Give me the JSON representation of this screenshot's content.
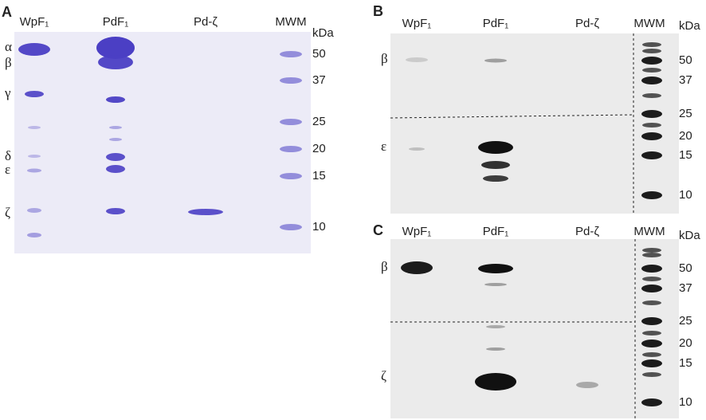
{
  "panels": [
    {
      "label": "A",
      "lanes": [
        "WpF₁",
        "PdF₁",
        "Pd-ζ",
        "MWM"
      ],
      "unit": "kDa",
      "markers": [
        50,
        37,
        25,
        20,
        15,
        10
      ],
      "subunits": [
        "α",
        "β",
        "γ",
        "δ",
        "ε",
        "ζ"
      ]
    },
    {
      "label": "B",
      "lanes": [
        "WpF₁",
        "PdF₁",
        "Pd-ζ",
        "MWM"
      ],
      "unit": "kDa",
      "markers": [
        50,
        37,
        25,
        20,
        15,
        10
      ],
      "subunits": [
        "β",
        "ε"
      ]
    },
    {
      "label": "C",
      "lanes": [
        "WpF₁",
        "PdF₁",
        "Pd-ζ",
        "MWM"
      ],
      "unit": "kDa",
      "markers": [
        50,
        37,
        25,
        20,
        15,
        10
      ],
      "subunits": [
        "β",
        "ζ"
      ]
    }
  ]
}
